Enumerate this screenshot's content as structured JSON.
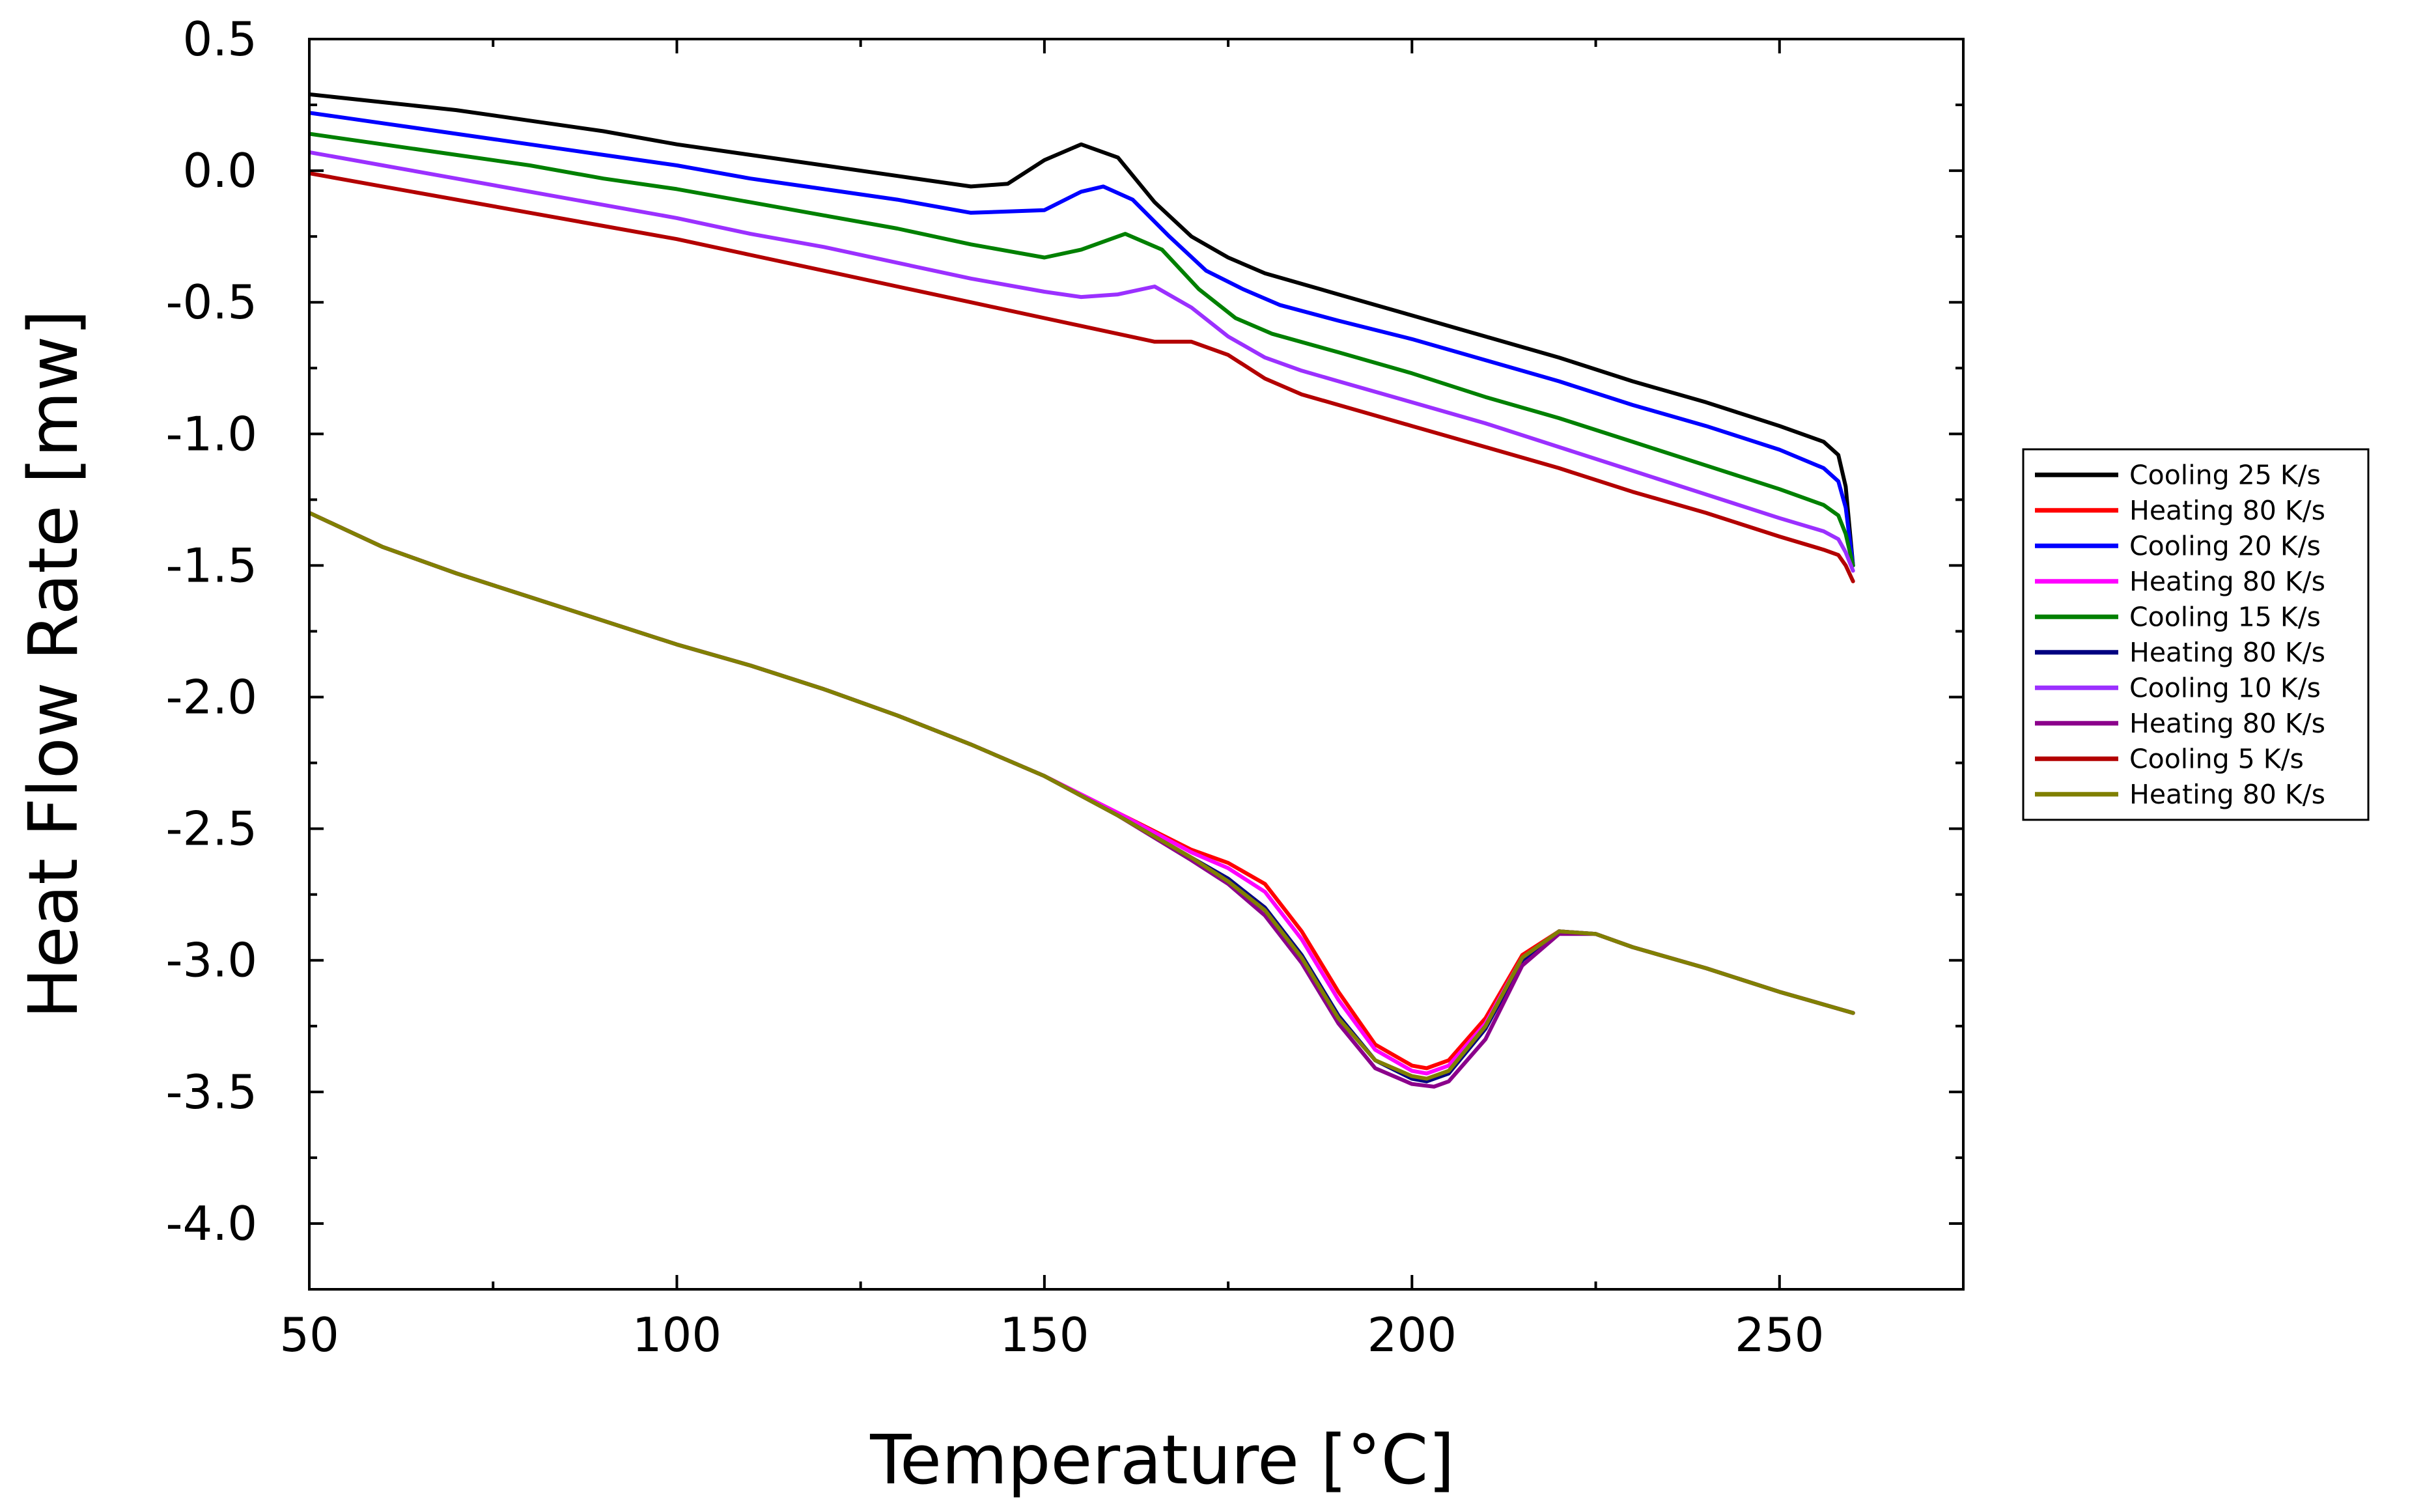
{
  "chart_data": {
    "type": "line",
    "title": "",
    "xlabel": "Temperature [°C]",
    "ylabel": "Heat Flow Rate [mw]",
    "xlim": [
      50,
      275
    ],
    "ylim": [
      -4.25,
      0.5
    ],
    "xticks": [
      50,
      100,
      150,
      200,
      250
    ],
    "xtick_labels": [
      "50",
      "100",
      "150",
      "200",
      "250"
    ],
    "xminor": [
      75,
      125,
      175,
      225,
      275
    ],
    "yticks": [
      0.5,
      0.0,
      -0.5,
      -1.0,
      -1.5,
      -2.0,
      -2.5,
      -3.0,
      -3.5,
      -4.0
    ],
    "ytick_labels": [
      "0.5",
      "0.0",
      "-0.5",
      "-1.0",
      "-1.5",
      "-2.0",
      "-2.5",
      "-3.0",
      "-3.5",
      "-4.0"
    ],
    "yminor": [
      0.25,
      -0.25,
      -0.75,
      -1.25,
      -1.75,
      -2.25,
      -2.75,
      -3.25,
      -3.75
    ],
    "grid": false,
    "legend_position": "right",
    "series": [
      {
        "name": "Cooling 25 K/s",
        "color": "#000000",
        "x": [
          50,
          60,
          70,
          80,
          90,
          100,
          110,
          120,
          130,
          140,
          145,
          150,
          155,
          160,
          165,
          170,
          175,
          180,
          190,
          200,
          210,
          220,
          230,
          240,
          250,
          256,
          258,
          259,
          260
        ],
        "y": [
          0.29,
          0.26,
          0.23,
          0.19,
          0.15,
          0.1,
          0.06,
          0.02,
          -0.02,
          -0.06,
          -0.05,
          0.04,
          0.1,
          0.05,
          -0.12,
          -0.25,
          -0.33,
          -0.39,
          -0.47,
          -0.55,
          -0.63,
          -0.71,
          -0.8,
          -0.88,
          -0.97,
          -1.03,
          -1.08,
          -1.2,
          -1.5
        ]
      },
      {
        "name": "Heating 80 K/s",
        "color": "#ff0000",
        "x": [
          50,
          60,
          70,
          80,
          90,
          100,
          110,
          120,
          130,
          140,
          150,
          160,
          170,
          175,
          180,
          185,
          190,
          195,
          200,
          202,
          205,
          210,
          215,
          220,
          225,
          230,
          240,
          250,
          260
        ],
        "y": [
          -1.3,
          -1.43,
          -1.53,
          -1.62,
          -1.71,
          -1.8,
          -1.88,
          -1.97,
          -2.07,
          -2.18,
          -2.3,
          -2.44,
          -2.58,
          -2.63,
          -2.71,
          -2.89,
          -3.12,
          -3.32,
          -3.4,
          -3.41,
          -3.38,
          -3.22,
          -2.98,
          -2.89,
          -2.9,
          -2.95,
          -3.03,
          -3.12,
          -3.2
        ]
      },
      {
        "name": "Cooling 20 K/s",
        "color": "#0000ff",
        "x": [
          50,
          60,
          70,
          80,
          90,
          100,
          110,
          120,
          130,
          140,
          150,
          155,
          158,
          162,
          167,
          172,
          177,
          182,
          190,
          200,
          210,
          220,
          230,
          240,
          250,
          256,
          258,
          259,
          260
        ],
        "y": [
          0.22,
          0.18,
          0.14,
          0.1,
          0.06,
          0.02,
          -0.03,
          -0.07,
          -0.11,
          -0.16,
          -0.15,
          -0.08,
          -0.06,
          -0.11,
          -0.25,
          -0.38,
          -0.45,
          -0.51,
          -0.57,
          -0.64,
          -0.72,
          -0.8,
          -0.89,
          -0.97,
          -1.06,
          -1.13,
          -1.18,
          -1.28,
          -1.5
        ]
      },
      {
        "name": "Heating 80 K/s",
        "color": "#ff00ff",
        "x": [
          50,
          60,
          70,
          80,
          90,
          100,
          110,
          120,
          130,
          140,
          150,
          160,
          170,
          175,
          180,
          185,
          190,
          195,
          200,
          202,
          205,
          210,
          215,
          220,
          225,
          230,
          240,
          250,
          260
        ],
        "y": [
          -1.3,
          -1.43,
          -1.53,
          -1.62,
          -1.71,
          -1.8,
          -1.88,
          -1.97,
          -2.07,
          -2.18,
          -2.3,
          -2.44,
          -2.59,
          -2.65,
          -2.74,
          -2.92,
          -3.15,
          -3.34,
          -3.42,
          -3.43,
          -3.4,
          -3.24,
          -2.99,
          -2.89,
          -2.9,
          -2.95,
          -3.03,
          -3.12,
          -3.2
        ]
      },
      {
        "name": "Cooling 15 K/s",
        "color": "#008000",
        "x": [
          50,
          60,
          70,
          80,
          90,
          100,
          110,
          120,
          130,
          140,
          150,
          155,
          161,
          166,
          171,
          176,
          181,
          190,
          200,
          210,
          220,
          230,
          240,
          250,
          256,
          258,
          259,
          260
        ],
        "y": [
          0.14,
          0.1,
          0.06,
          0.02,
          -0.03,
          -0.07,
          -0.12,
          -0.17,
          -0.22,
          -0.28,
          -0.33,
          -0.3,
          -0.24,
          -0.3,
          -0.45,
          -0.56,
          -0.62,
          -0.69,
          -0.77,
          -0.86,
          -0.94,
          -1.03,
          -1.12,
          -1.21,
          -1.27,
          -1.31,
          -1.38,
          -1.5
        ]
      },
      {
        "name": "Heating 80 K/s",
        "color": "#000080",
        "x": [
          50,
          60,
          70,
          80,
          90,
          100,
          110,
          120,
          130,
          140,
          150,
          160,
          170,
          175,
          180,
          185,
          190,
          195,
          200,
          202,
          205,
          210,
          215,
          220,
          225,
          230,
          240,
          250,
          260
        ],
        "y": [
          -1.3,
          -1.43,
          -1.53,
          -1.62,
          -1.71,
          -1.8,
          -1.88,
          -1.97,
          -2.07,
          -2.18,
          -2.3,
          -2.45,
          -2.61,
          -2.69,
          -2.8,
          -2.98,
          -3.21,
          -3.38,
          -3.45,
          -3.46,
          -3.43,
          -3.26,
          -3.0,
          -2.89,
          -2.9,
          -2.95,
          -3.03,
          -3.12,
          -3.2
        ]
      },
      {
        "name": "Cooling 10 K/s",
        "color": "#9b30ff",
        "x": [
          50,
          60,
          70,
          80,
          90,
          100,
          110,
          120,
          130,
          140,
          150,
          155,
          160,
          165,
          170,
          175,
          180,
          185,
          190,
          200,
          210,
          220,
          230,
          240,
          250,
          256,
          258,
          259,
          260
        ],
        "y": [
          0.07,
          0.02,
          -0.03,
          -0.08,
          -0.13,
          -0.18,
          -0.24,
          -0.29,
          -0.35,
          -0.41,
          -0.46,
          -0.48,
          -0.47,
          -0.44,
          -0.52,
          -0.63,
          -0.71,
          -0.76,
          -0.8,
          -0.88,
          -0.96,
          -1.05,
          -1.14,
          -1.23,
          -1.32,
          -1.37,
          -1.4,
          -1.45,
          -1.52
        ]
      },
      {
        "name": "Heating 80 K/s",
        "color": "#8b008b",
        "x": [
          50,
          60,
          70,
          80,
          90,
          100,
          110,
          120,
          130,
          140,
          150,
          160,
          170,
          175,
          180,
          185,
          190,
          195,
          200,
          203,
          205,
          210,
          215,
          220,
          225,
          230,
          240,
          250,
          260
        ],
        "y": [
          -1.3,
          -1.43,
          -1.53,
          -1.62,
          -1.71,
          -1.8,
          -1.88,
          -1.97,
          -2.07,
          -2.18,
          -2.3,
          -2.45,
          -2.62,
          -2.71,
          -2.83,
          -3.01,
          -3.24,
          -3.41,
          -3.47,
          -3.48,
          -3.46,
          -3.3,
          -3.02,
          -2.9,
          -2.9,
          -2.95,
          -3.03,
          -3.12,
          -3.2
        ]
      },
      {
        "name": "Cooling 5 K/s",
        "color": "#b30000",
        "x": [
          50,
          60,
          70,
          80,
          90,
          100,
          110,
          120,
          130,
          140,
          150,
          155,
          160,
          165,
          170,
          175,
          180,
          185,
          190,
          200,
          210,
          220,
          230,
          240,
          250,
          256,
          258,
          259,
          260
        ],
        "y": [
          -0.01,
          -0.06,
          -0.11,
          -0.16,
          -0.21,
          -0.26,
          -0.32,
          -0.38,
          -0.44,
          -0.5,
          -0.56,
          -0.59,
          -0.62,
          -0.65,
          -0.65,
          -0.7,
          -0.79,
          -0.85,
          -0.89,
          -0.97,
          -1.05,
          -1.13,
          -1.22,
          -1.3,
          -1.39,
          -1.44,
          -1.46,
          -1.5,
          -1.56
        ]
      },
      {
        "name": "Heating 80 K/s",
        "color": "#808000",
        "x": [
          50,
          60,
          70,
          80,
          90,
          100,
          110,
          120,
          130,
          140,
          150,
          160,
          170,
          175,
          180,
          185,
          190,
          195,
          200,
          202,
          205,
          210,
          215,
          220,
          225,
          230,
          240,
          250,
          260
        ],
        "y": [
          -1.3,
          -1.43,
          -1.53,
          -1.62,
          -1.71,
          -1.8,
          -1.88,
          -1.97,
          -2.07,
          -2.18,
          -2.3,
          -2.45,
          -2.61,
          -2.7,
          -2.81,
          -2.99,
          -3.22,
          -3.38,
          -3.44,
          -3.45,
          -3.42,
          -3.25,
          -2.99,
          -2.89,
          -2.9,
          -2.95,
          -3.03,
          -3.12,
          -3.2
        ]
      }
    ]
  }
}
